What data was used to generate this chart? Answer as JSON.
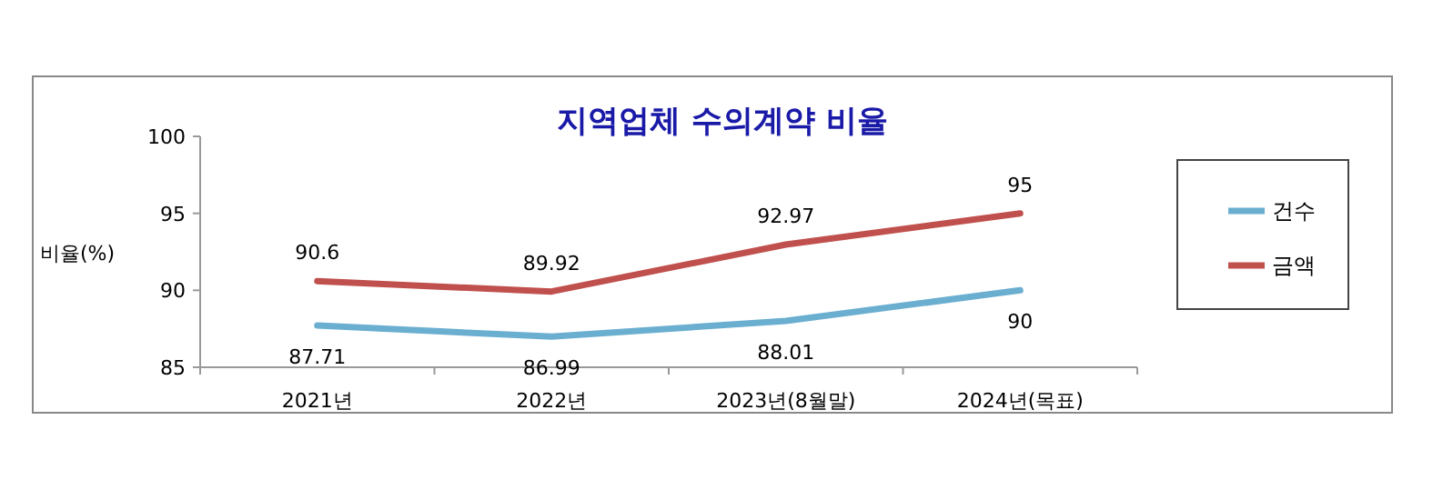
{
  "chart_data": {
    "type": "line",
    "title": "지역업체 수의계약 비율",
    "ylabel": "비율(%)",
    "categories": [
      "2021년",
      "2022년",
      "2023년(8월말)",
      "2024년(목표)"
    ],
    "series": [
      {
        "name": "건수",
        "color": "#6aaed0",
        "values": [
          87.71,
          86.99,
          88.01,
          90
        ]
      },
      {
        "name": "금액",
        "color": "#c0504d",
        "values": [
          90.6,
          89.92,
          92.97,
          95
        ]
      }
    ],
    "ylim": [
      85,
      100
    ],
    "yticks": [
      85,
      90,
      95,
      100
    ],
    "data_labels": true,
    "legend": "right",
    "grid": false,
    "marker": "none",
    "line_style": "solid"
  }
}
